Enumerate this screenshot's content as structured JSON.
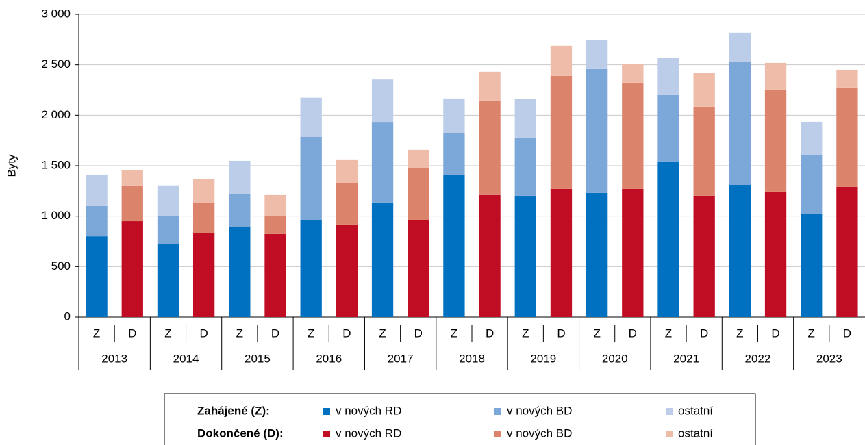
{
  "chart_data": {
    "type": "stacked_bar",
    "y_label": "Byty",
    "categories": [
      "Z",
      "D",
      "Z",
      "D",
      "Z",
      "D",
      "Z",
      "D",
      "Z",
      "D",
      "Z",
      "D",
      "Z",
      "D",
      "Z",
      "D",
      "Z",
      "D",
      "Z",
      "D",
      "Z",
      "D"
    ],
    "groups": [
      "2013",
      "2014",
      "2015",
      "2016",
      "2017",
      "2018",
      "2019",
      "2020",
      "2021",
      "2022",
      "2023"
    ],
    "ylim": [
      0,
      3000
    ],
    "yticks": [
      0,
      500,
      {
        "value": 1000,
        "label": "1 000"
      },
      {
        "value": 1500,
        "label": "1 500"
      },
      {
        "value": 2000,
        "label": "2 000"
      },
      {
        "value": 2500,
        "label": "2 500"
      },
      {
        "value": 3000,
        "label": "3 000"
      }
    ],
    "grid": true,
    "legend_groups": [
      "Zahájené (Z):",
      "Dokončené (D):"
    ],
    "series": [
      {
        "name": "v nových RD",
        "color": "#0070c0",
        "values": [
          800,
          null,
          720,
          null,
          890,
          null,
          957,
          null,
          1134,
          null,
          1412,
          null,
          1202,
          null,
          1229,
          null,
          1541,
          null,
          1310,
          null,
          1025,
          null
        ]
      },
      {
        "name": "v nových BD",
        "color": "#7ba7d9",
        "values": [
          300,
          null,
          280,
          null,
          325,
          null,
          830,
          null,
          800,
          null,
          408,
          null,
          577,
          null,
          1229,
          null,
          659,
          null,
          1216,
          null,
          577,
          null
        ]
      },
      {
        "name": "ostatní",
        "color": "#bccde9",
        "values": [
          312,
          null,
          305,
          null,
          333,
          null,
          387,
          null,
          420,
          null,
          346,
          null,
          380,
          null,
          285,
          null,
          367,
          null,
          292,
          null,
          333,
          null
        ]
      },
      {
        "name": "v nových RD",
        "color": "#c00d23",
        "values": [
          null,
          950,
          null,
          828,
          null,
          822,
          null,
          917,
          null,
          957,
          null,
          1209,
          null,
          1270,
          null,
          1270,
          null,
          1202,
          null,
          1243,
          null,
          1290
        ]
      },
      {
        "name": "v nových BD",
        "color": "#dc836b",
        "values": [
          null,
          354,
          null,
          299,
          null,
          176,
          null,
          407,
          null,
          516,
          null,
          930,
          null,
          1120,
          null,
          1052,
          null,
          883,
          null,
          1011,
          null,
          985
        ]
      },
      {
        "name": "ostatní",
        "color": "#f0bcaa",
        "values": [
          null,
          149,
          null,
          238,
          null,
          211,
          null,
          238,
          null,
          184,
          null,
          292,
          null,
          299,
          null,
          183,
          null,
          332,
          null,
          265,
          null,
          176
        ]
      }
    ]
  }
}
